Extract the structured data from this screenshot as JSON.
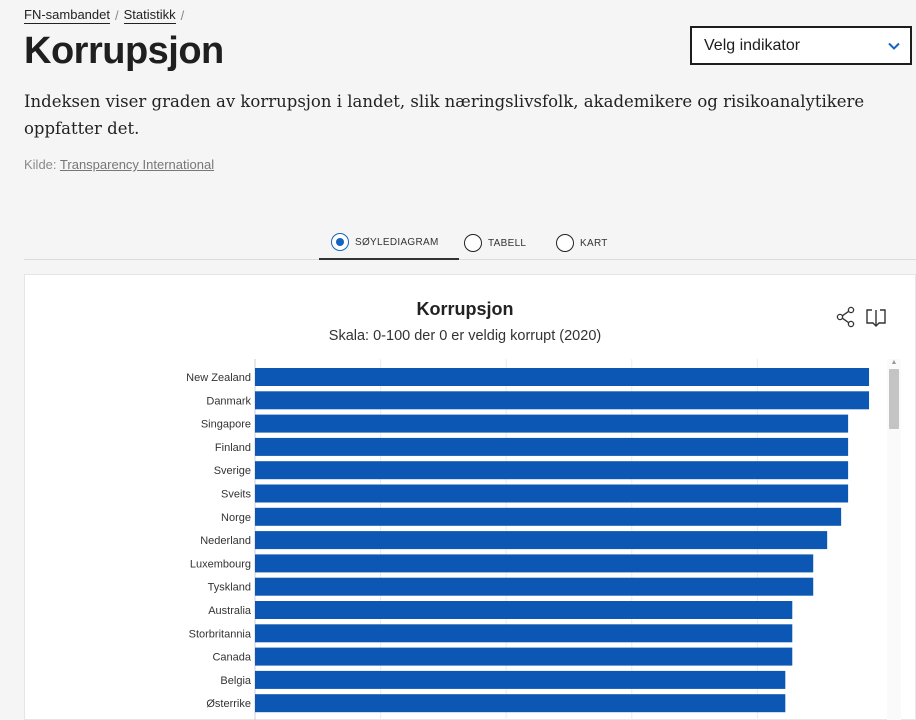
{
  "breadcrumb": {
    "items": [
      "FN-sambandet",
      "Statistikk"
    ],
    "separator": "/"
  },
  "header": {
    "title": "Korrupsjon"
  },
  "indicator_select": {
    "label": "Velg indikator"
  },
  "intro": {
    "text": "Indeksen viser graden av korrupsjon i landet, slik næringslivsfolk, akademikere og risikoanalytikere oppfatter det."
  },
  "source": {
    "prefix": "Kilde:",
    "link": "Transparency International"
  },
  "tabs": [
    {
      "label": "SØYLEDIAGRAM",
      "selected": true
    },
    {
      "label": "TABELL",
      "selected": false
    },
    {
      "label": "KART",
      "selected": false
    }
  ],
  "colors": {
    "bar": "#0b57b3",
    "accent": "#1565c0"
  },
  "chart_data": {
    "type": "bar",
    "orientation": "horizontal",
    "title": "Korrupsjon",
    "subtitle": "Skala: 0-100 der 0 er veldig korrupt (2020)",
    "categories": [
      "New Zealand",
      "Danmark",
      "Singapore",
      "Finland",
      "Sverige",
      "Sveits",
      "Norge",
      "Nederland",
      "Luxembourg",
      "Tyskland",
      "Australia",
      "Storbritannia",
      "Canada",
      "Belgia",
      "Østerrike"
    ],
    "values": [
      88,
      88,
      85,
      85,
      85,
      85,
      84,
      82,
      80,
      80,
      77,
      77,
      77,
      76,
      76
    ],
    "xlim": [
      0,
      90
    ],
    "gridlines": [
      0,
      18,
      36,
      54,
      72
    ],
    "grid": true
  }
}
